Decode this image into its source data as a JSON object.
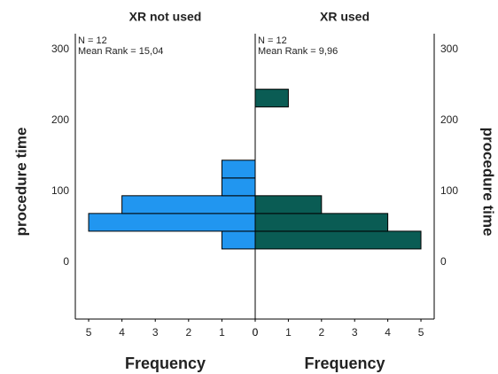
{
  "chart_data": [
    {
      "type": "histogram",
      "title": "XR not used",
      "annotations": [
        "N = 12",
        "Mean Rank = 15,04"
      ],
      "xlabel": "Frequency",
      "ylabel": "procedure time",
      "orientation": "horizontal",
      "x_reversed": true,
      "y_axis_side": "left",
      "bins": [
        18.75,
        43.75,
        68.75,
        93.75,
        118.75,
        143.75,
        168.75,
        193.75,
        218.75,
        243.75
      ],
      "values": [
        1,
        5,
        4,
        1,
        1,
        0,
        0,
        0,
        0
      ],
      "color": "#2196f0",
      "xlim": [
        0,
        5.4
      ],
      "xticks": [
        0,
        1,
        2,
        3,
        4,
        5
      ],
      "ylim": [
        -80,
        322
      ],
      "yticks": [
        0,
        100,
        200,
        300
      ]
    },
    {
      "type": "histogram",
      "title": "XR used",
      "annotations": [
        "N = 12",
        "Mean Rank = 9,96"
      ],
      "xlabel": "Frequency",
      "ylabel": "procedure time",
      "orientation": "horizontal",
      "x_reversed": false,
      "y_axis_side": "right",
      "bins": [
        18.75,
        43.75,
        68.75,
        93.75,
        118.75,
        143.75,
        168.75,
        193.75,
        218.75,
        243.75
      ],
      "values": [
        5,
        4,
        2,
        0,
        0,
        0,
        0,
        0,
        1
      ],
      "color": "#0a5c54",
      "xlim": [
        0,
        5.4
      ],
      "xticks": [
        0,
        1,
        2,
        3,
        4,
        5
      ],
      "ylim": [
        -80,
        322
      ],
      "yticks": [
        0,
        100,
        200,
        300
      ]
    }
  ]
}
